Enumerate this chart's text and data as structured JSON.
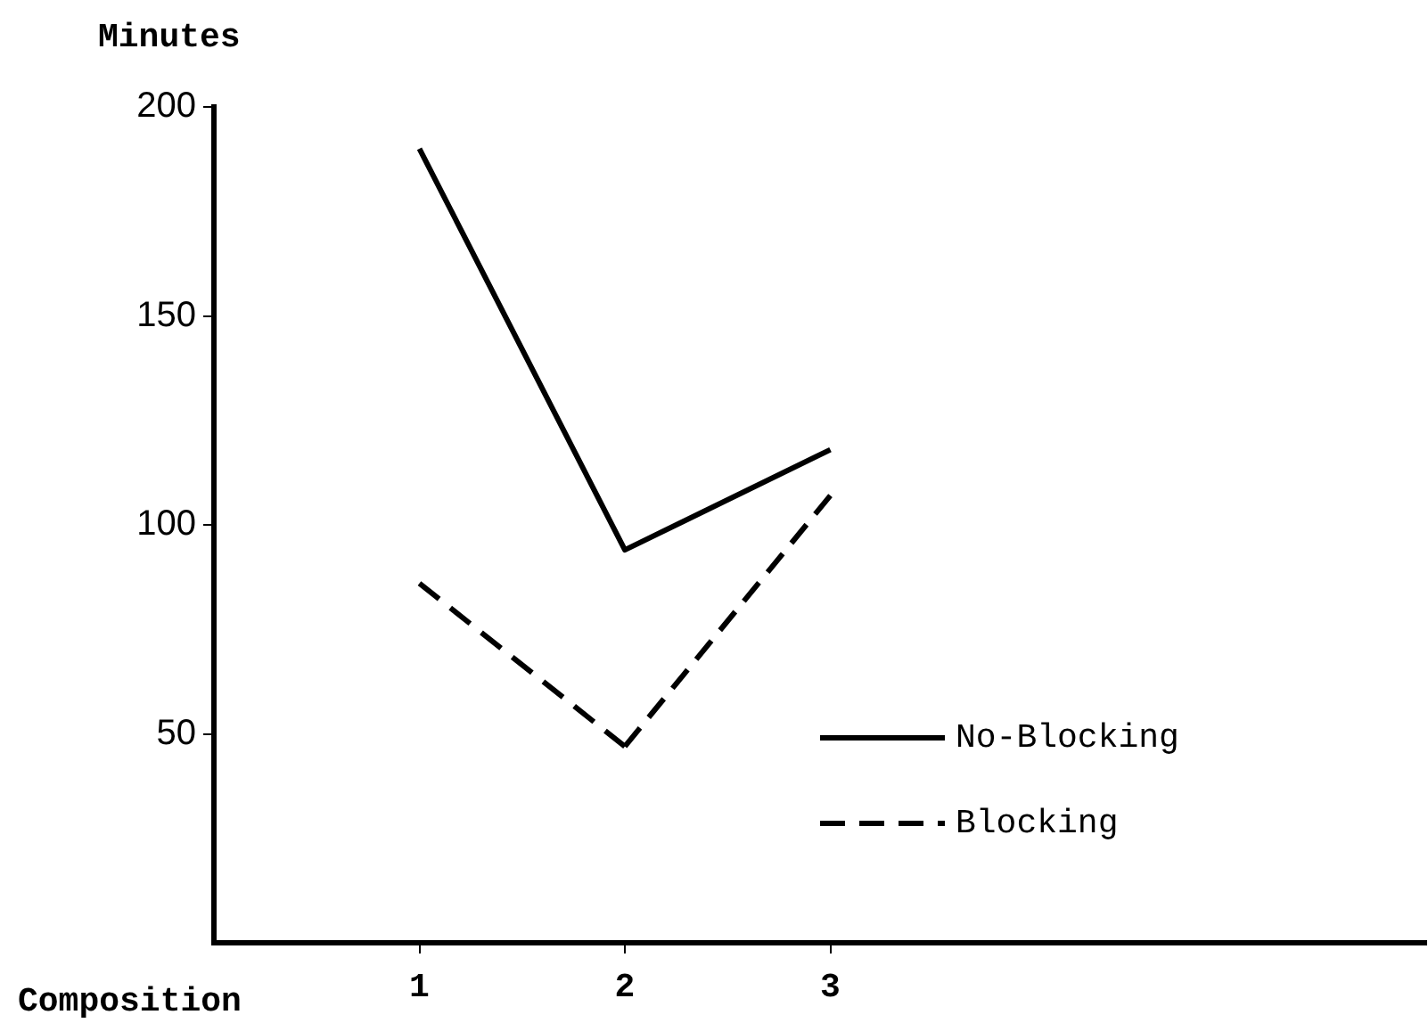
{
  "chart_data": {
    "type": "line",
    "xlabel": "Composition",
    "ylabel": "Minutes",
    "x": [
      1,
      2,
      3
    ],
    "xlim": [
      0,
      5.9
    ],
    "xticks": [
      1,
      2,
      3
    ],
    "ylim": [
      0,
      200
    ],
    "yticks": [
      50,
      100,
      150,
      200
    ],
    "series": [
      {
        "name": "No-Blocking",
        "color": "#000000",
        "values": [
          190,
          94,
          118
        ],
        "line_style": "solid"
      },
      {
        "name": "Blocking",
        "color": "#000000",
        "values": [
          86,
          47,
          107
        ],
        "line_style": "dashed"
      }
    ],
    "legend": "bottom right",
    "grid": false,
    "marker": "none"
  }
}
